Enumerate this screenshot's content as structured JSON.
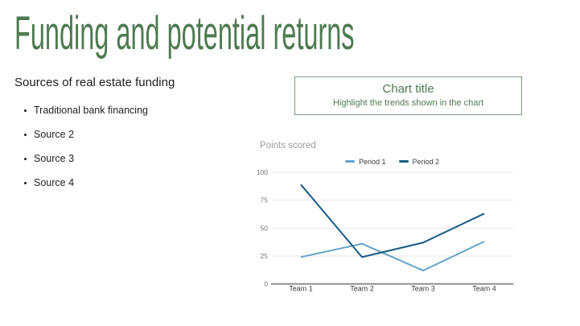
{
  "slide": {
    "title": "Funding and potential returns",
    "colors": {
      "title_green": "#4e7a52",
      "box_border_green": "#7c9b7c",
      "grid_line": "#e8e8e8",
      "axis_line": "#909090",
      "y_label": "#757575",
      "x_label": "#3d3d3d"
    }
  },
  "left_panel": {
    "heading": "Sources of real estate funding",
    "bullets": [
      {
        "label": "Traditional bank financing"
      },
      {
        "label": "Source 2"
      },
      {
        "label": "Source 3"
      },
      {
        "label": "Source 4"
      }
    ]
  },
  "chart_title_box": {
    "title": "Chart title",
    "subtitle": "Highlight the trends shown in the chart"
  },
  "chart_data": {
    "type": "line",
    "title": "Points scored",
    "categories": [
      "Team 1",
      "Team 2",
      "Team 3",
      "Team 4"
    ],
    "series": [
      {
        "name": "Period 1",
        "color": "#64a3c8",
        "values": [
          24,
          36,
          12,
          38
        ]
      },
      {
        "name": "Period 2",
        "color": "#175a85",
        "values": [
          89,
          24,
          37,
          63
        ]
      }
    ],
    "ylim": [
      0,
      100
    ],
    "yticks": [
      0,
      25,
      50,
      75,
      100
    ],
    "grid": true,
    "legend_position": "top"
  }
}
